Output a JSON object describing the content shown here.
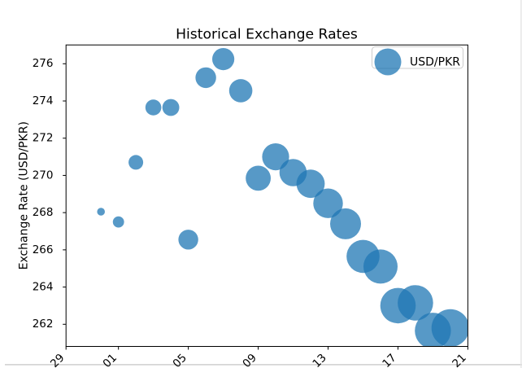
{
  "window": {
    "bottom_edge_color": "#cbcbcb",
    "right_edge_color": "#e4e4e4"
  },
  "chart_data": {
    "type": "scatter",
    "title": "Historical Exchange Rates",
    "xlabel": "",
    "ylabel": "Exchange Rate (USD/PKR)",
    "legend": {
      "label": "USD/PKR",
      "position": "upper right"
    },
    "series_color": "#1f77b4",
    "marker_alpha": 0.75,
    "x_tick_labels": [
      "29",
      "01",
      "05",
      "09",
      "13",
      "17",
      "21"
    ],
    "x_tick_days": [
      0,
      3,
      7,
      11,
      15,
      19,
      23
    ],
    "x_axis_start": "Dec 29",
    "y_ticks": [
      262,
      264,
      266,
      268,
      270,
      272,
      274,
      276
    ],
    "ylim": [
      260.8,
      277.0
    ],
    "grid": false,
    "points": [
      {
        "date": "Dec 31",
        "day": 2,
        "rate": 268.05,
        "size": 4.8
      },
      {
        "date": "Jan 01",
        "day": 3,
        "rate": 267.5,
        "size": 6.9
      },
      {
        "date": "Jan 02",
        "day": 4,
        "rate": 270.7,
        "size": 9.0
      },
      {
        "date": "Jan 03",
        "day": 5,
        "rate": 273.65,
        "size": 9.8
      },
      {
        "date": "Jan 04",
        "day": 6,
        "rate": 273.65,
        "size": 10.4
      },
      {
        "date": "Jan 05",
        "day": 7,
        "rate": 266.55,
        "size": 12.2
      },
      {
        "date": "Jan 06",
        "day": 8,
        "rate": 275.25,
        "size": 12.7
      },
      {
        "date": "Jan 07",
        "day": 9,
        "rate": 276.25,
        "size": 13.6
      },
      {
        "date": "Jan 08",
        "day": 10,
        "rate": 274.55,
        "size": 14.3
      },
      {
        "date": "Jan 09",
        "day": 11,
        "rate": 269.85,
        "size": 15.4
      },
      {
        "date": "Jan 10",
        "day": 12,
        "rate": 271.0,
        "size": 16.6
      },
      {
        "date": "Jan 11",
        "day": 13,
        "rate": 270.15,
        "size": 16.8
      },
      {
        "date": "Jan 12",
        "day": 14,
        "rate": 269.55,
        "size": 17.4
      },
      {
        "date": "Jan 13",
        "day": 15,
        "rate": 268.5,
        "size": 18.2
      },
      {
        "date": "Jan 14",
        "day": 16,
        "rate": 267.4,
        "size": 19.0
      },
      {
        "date": "Jan 15",
        "day": 17,
        "rate": 265.65,
        "size": 20.3
      },
      {
        "date": "Jan 16",
        "day": 18,
        "rate": 265.1,
        "size": 21.0
      },
      {
        "date": "Jan 17",
        "day": 19,
        "rate": 263.0,
        "size": 21.8
      },
      {
        "date": "Jan 18",
        "day": 20,
        "rate": 263.15,
        "size": 21.8
      },
      {
        "date": "Jan 19",
        "day": 21,
        "rate": 261.65,
        "size": 22.2
      },
      {
        "date": "Jan 20",
        "day": 22,
        "rate": 261.8,
        "size": 23.2
      }
    ]
  }
}
